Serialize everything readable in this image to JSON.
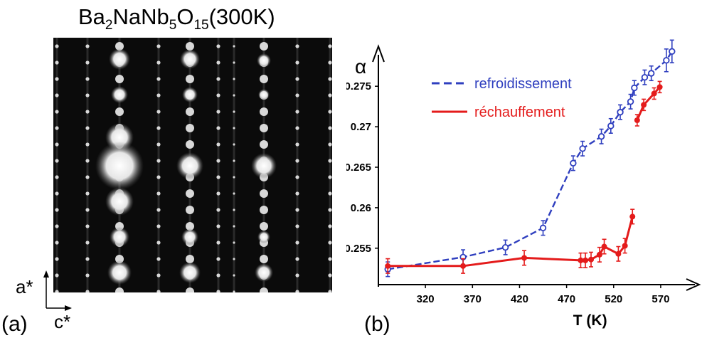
{
  "left_panel": {
    "title_parts": [
      "Ba",
      "2",
      "NaNb",
      "5",
      "O",
      "15",
      "(300K)"
    ],
    "axis_vertical": "a*",
    "axis_horizontal": "c*",
    "label": "(a)"
  },
  "right_panel": {
    "label": "(b)"
  },
  "chart_data": {
    "type": "line",
    "xlabel": "T (K)",
    "ylabel": "α",
    "xlim": [
      270,
      595
    ],
    "ylim": [
      0.2505,
      0.2795
    ],
    "xticks": [
      320,
      370,
      420,
      470,
      520,
      570
    ],
    "yticks": [
      0.255,
      0.26,
      0.265,
      0.27,
      0.275
    ],
    "ytick_labels": [
      "0.255",
      "0.26",
      "0.265",
      "0.27",
      "0.275"
    ],
    "legend": "top-left",
    "series": [
      {
        "name": "refroidissement",
        "color": "#2f3fbf",
        "style": "dashed",
        "marker": "open-circle",
        "points": [
          [
            280,
            0.2524,
            0.0009
          ],
          [
            360,
            0.2539,
            0.0009
          ],
          [
            405,
            0.2551,
            0.0009
          ],
          [
            445,
            0.2575,
            0.0009
          ],
          [
            477,
            0.2655,
            0.0009
          ],
          [
            487,
            0.2673,
            0.0009
          ],
          [
            507,
            0.2688,
            0.0009
          ],
          [
            517,
            0.2701,
            0.0009
          ],
          [
            527,
            0.2718,
            0.0009
          ],
          [
            538,
            0.2731,
            0.0009
          ],
          [
            542,
            0.2748,
            0.0009
          ],
          [
            553,
            0.2761,
            0.0009
          ],
          [
            560,
            0.2766,
            0.0009
          ],
          [
            576,
            0.2782,
            0.0014
          ],
          [
            582,
            0.2793,
            0.0014
          ]
        ]
      },
      {
        "name": "réchauffement",
        "color": "#e41b1b",
        "style": "solid",
        "marker": "filled-circle",
        "points": [
          [
            280,
            0.2528,
            0.0009
          ],
          [
            360,
            0.2528,
            0.0009
          ],
          [
            425,
            0.2538,
            0.0009
          ],
          [
            485,
            0.2535,
            0.0009
          ],
          [
            490,
            0.2535,
            0.0009
          ],
          [
            496,
            0.2536,
            0.0009
          ],
          [
            505,
            0.2542,
            0.0009
          ],
          [
            510,
            0.2552,
            0.0009
          ],
          [
            525,
            0.2543,
            0.0009
          ],
          [
            532,
            0.2553,
            0.0009
          ],
          [
            540,
            0.2589,
            0.0009
          ],
          [
            545,
            0.2708,
            0.0007
          ],
          [
            552,
            0.2727,
            0.0007
          ],
          [
            563,
            0.2741,
            0.0007
          ],
          [
            569,
            0.2749,
            0.0007
          ]
        ]
      }
    ]
  }
}
